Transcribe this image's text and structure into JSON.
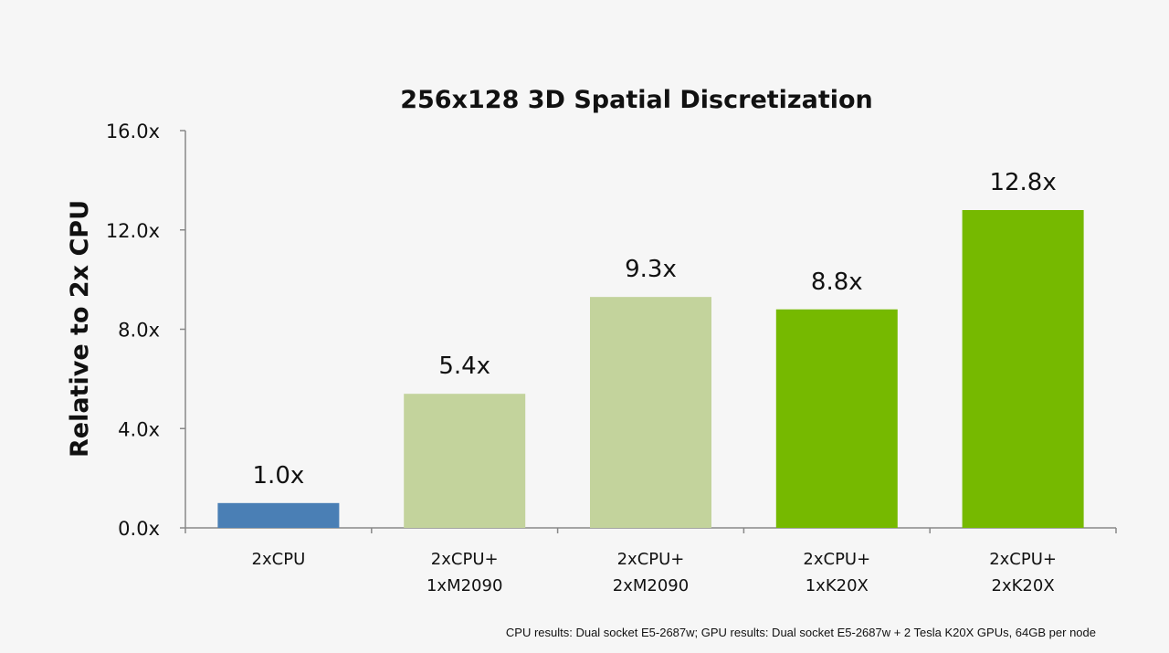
{
  "chart_data": {
    "type": "bar",
    "title": "256x128 3D Spatial Discretization",
    "ylabel": "Relative to 2x CPU",
    "xlabel": "",
    "ylim": [
      0,
      16
    ],
    "yticks": [
      "0.0x",
      "4.0x",
      "8.0x",
      "12.0x",
      "16.0x"
    ],
    "ytick_values": [
      0,
      4,
      8,
      12,
      16
    ],
    "grid": false,
    "categories": [
      [
        "2xCPU"
      ],
      [
        "2xCPU+",
        "1xM2090"
      ],
      [
        "2xCPU+",
        "2xM2090"
      ],
      [
        "2xCPU+",
        "1xK20X"
      ],
      [
        "2xCPU+",
        "2xK20X"
      ]
    ],
    "values": [
      1.0,
      5.4,
      9.3,
      8.8,
      12.8
    ],
    "data_labels": [
      "1.0x",
      "5.4x",
      "9.3x",
      "8.8x",
      "12.8x"
    ],
    "colors": [
      "#4a7fb5",
      "#c3d39c",
      "#c3d39c",
      "#76b900",
      "#76b900"
    ]
  },
  "footnote": "CPU results: Dual socket E5-2687w; GPU results: Dual socket E5-2687w + 2 Tesla K20X GPUs, 64GB per node"
}
